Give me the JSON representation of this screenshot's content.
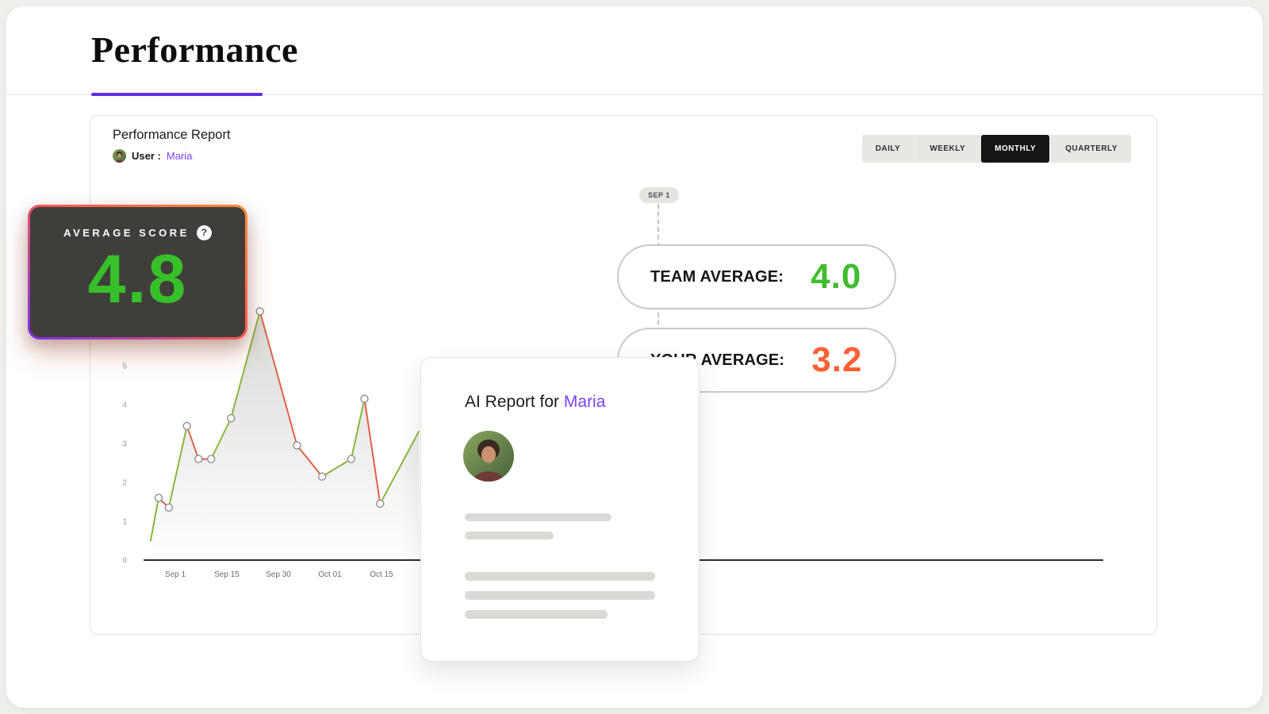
{
  "page": {
    "title": "Performance"
  },
  "colors": {
    "accent_purple": "#7b42f6",
    "score_green": "#38c02a",
    "team_green": "#3fbd2e",
    "your_orange": "#fb6136"
  },
  "report": {
    "title": "Performance Report",
    "user_label": "User :",
    "user_name": "Maria",
    "tabs": [
      {
        "label": "DAILY",
        "active": false
      },
      {
        "label": "WEEKLY",
        "active": false
      },
      {
        "label": "MONTHLY",
        "active": true
      },
      {
        "label": "QUARTERLY",
        "active": false
      }
    ]
  },
  "score_card": {
    "label": "AVERAGE SCORE",
    "help_icon": "?",
    "value": "4.8"
  },
  "marker": {
    "label": "SEP 1"
  },
  "averages": {
    "team": {
      "label": "TEAM AVERAGE:",
      "value": "4.0"
    },
    "your": {
      "label": "YOUR AVERAGE:",
      "value": "3.2"
    }
  },
  "ai_card": {
    "title_prefix": "AI Report for ",
    "user_name": "Maria"
  },
  "chart_data": {
    "type": "line",
    "x_tick_labels": [
      "Sep 1",
      "Sep 15",
      "Sep 30",
      "Oct 01",
      "Oct 15"
    ],
    "y_ticks": [
      0,
      1,
      2,
      3,
      4,
      5
    ],
    "ylim": [
      0,
      5
    ],
    "points": [
      {
        "x": 1.7,
        "y": 0.5
      },
      {
        "x": 4.6,
        "y": 1.6
      },
      {
        "x": 8.3,
        "y": 1.35
      },
      {
        "x": 14.9,
        "y": 3.45
      },
      {
        "x": 19.1,
        "y": 2.6
      },
      {
        "x": 23.7,
        "y": 2.6
      },
      {
        "x": 30.9,
        "y": 3.65
      },
      {
        "x": 41.4,
        "y": 6.4
      },
      {
        "x": 54.9,
        "y": 2.95
      },
      {
        "x": 64.0,
        "y": 2.15
      },
      {
        "x": 74.6,
        "y": 2.6
      },
      {
        "x": 79.4,
        "y": 4.15
      },
      {
        "x": 85.1,
        "y": 1.45
      },
      {
        "x": 99.1,
        "y": 3.3
      }
    ],
    "rise_color": "#86b83c",
    "fall_color": "#e2604a",
    "marker_style": "white-circle",
    "area_fill": "gray-gradient",
    "grid": false,
    "legend": false
  }
}
